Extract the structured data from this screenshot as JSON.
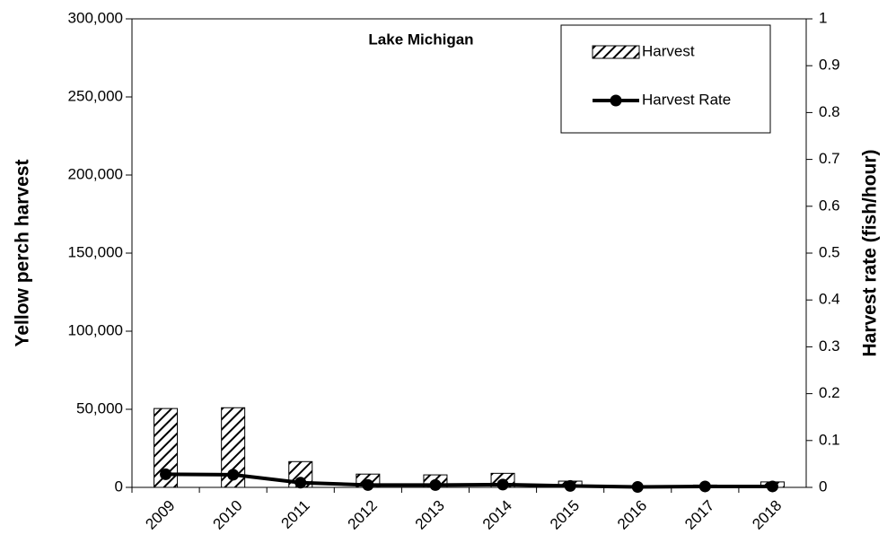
{
  "chart_data": {
    "type": "bar_line",
    "title": "Lake Michigan",
    "y_label": "Yellow perch harvest",
    "y2_label": "Harvest rate (fish/hour)",
    "categories": [
      "2009",
      "2010",
      "2011",
      "2012",
      "2013",
      "2014",
      "2015",
      "2016",
      "2017",
      "2018"
    ],
    "series": [
      {
        "name": "Harvest",
        "type": "bar",
        "color": "#000000",
        "values": [
          50500,
          51000,
          16500,
          8500,
          8000,
          9000,
          4000,
          1000,
          1500,
          3500
        ]
      },
      {
        "name": "Harvest Rate",
        "type": "line",
        "axis": "y2",
        "color": "#000000",
        "values": [
          0.028,
          0.027,
          0.01,
          0.005,
          0.005,
          0.006,
          0.003,
          0.001,
          0.002,
          0.002
        ]
      }
    ],
    "ylim": [
      0,
      300000
    ],
    "yticks": [
      0,
      {
        "value": 50000,
        "label": "50,000"
      },
      {
        "value": 100000,
        "label": "100,000"
      },
      {
        "value": 150000,
        "label": "150,000"
      },
      {
        "value": 200000,
        "label": "200,000"
      },
      {
        "value": 250000,
        "label": "250,000"
      },
      {
        "value": 300000,
        "label": "300,000"
      }
    ],
    "y2lim": [
      0,
      1
    ],
    "y2ticks": [
      0,
      0.1,
      0.2,
      0.3,
      0.4,
      0.5,
      0.6,
      0.7,
      0.8,
      0.9,
      1
    ],
    "grid": false,
    "legend": "upper right"
  }
}
